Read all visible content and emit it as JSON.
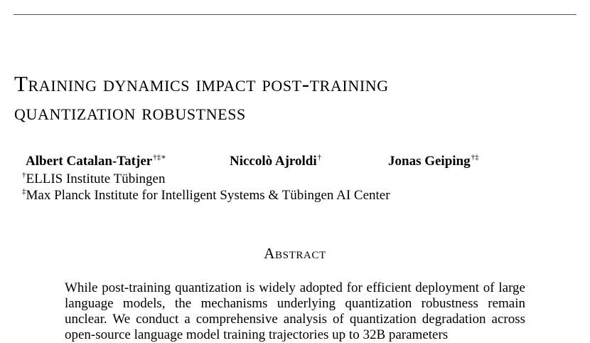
{
  "paper": {
    "title_line1": "Training dynamics impact post-training",
    "title_line2": "quantization robustness",
    "authors": [
      {
        "name": "Albert Catalan-Tatjer",
        "marks": "†‡∗"
      },
      {
        "name": "Niccolò Ajroldi",
        "marks": "†"
      },
      {
        "name": "Jonas Geiping",
        "marks": "†‡"
      }
    ],
    "affiliations": [
      {
        "mark": "†",
        "name": "ELLIS Institute Tübingen"
      },
      {
        "mark": "‡",
        "name": "Max Planck Institute for Intelligent Systems & Tübingen AI Center"
      }
    ],
    "abstract_heading": "Abstract",
    "abstract_text": "While post-training quantization is widely adopted for efficient deployment of large language models, the mechanisms underlying quantization robustness remain unclear. We conduct a comprehensive analysis of quantization degradation across open-source language model training trajectories up to 32B parameters"
  }
}
